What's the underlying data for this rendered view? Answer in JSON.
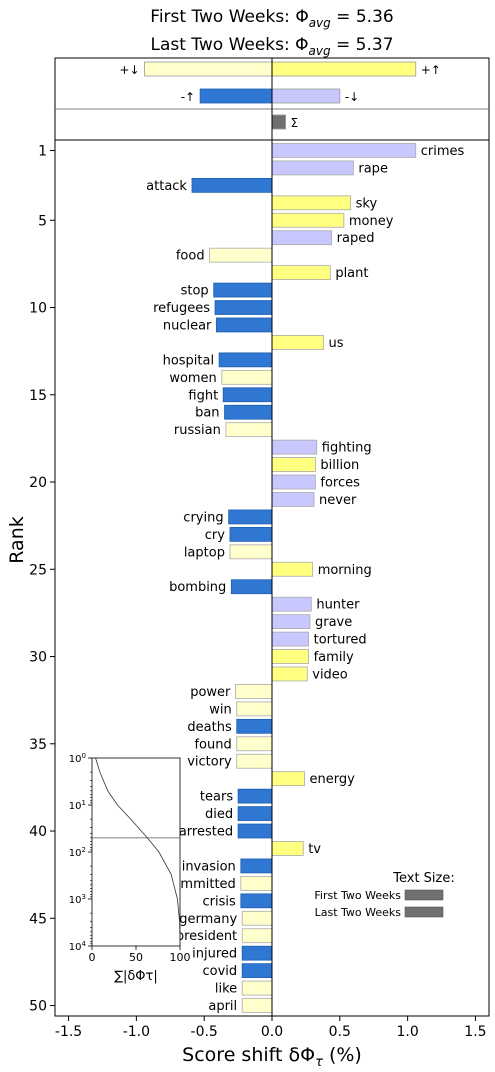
{
  "chart_data": {
    "type": "bar",
    "orientation": "horizontal",
    "title_line1_prefix": "First Two Weeks: ",
    "title_line1_value": "5.36",
    "title_line2_prefix": "Last Two Weeks: ",
    "title_line2_value": "5.37",
    "xlabel": "Score shift",
    "ylabel": "Rank",
    "xlim": [
      -1.6,
      1.6
    ],
    "ylim": [
      50.6,
      0.4
    ],
    "xticks": [
      -1.5,
      -1.0,
      -0.5,
      0.0,
      0.5,
      1.0,
      1.5
    ],
    "xtick_labels": [
      "-1.5",
      "-1.0",
      "-0.5",
      "0.0",
      "0.5",
      "1.0",
      "1.5"
    ],
    "yticks": [
      1,
      5,
      10,
      15,
      20,
      25,
      30,
      35,
      40,
      45,
      50
    ],
    "colors": {
      "pos_up": "#ffff80",
      "pos_down": "#c8c8ff",
      "neg_down": "#ffffcc",
      "neg_up": "#2f77d2",
      "sum": "#707070"
    },
    "summary": [
      {
        "label": "+↓",
        "value": -0.94,
        "kind": "neg_down"
      },
      {
        "label": "+↑",
        "value": 1.06,
        "kind": "pos_up"
      },
      {
        "label": "-↑",
        "value": -0.53,
        "kind": "neg_up"
      },
      {
        "label": "-↓",
        "value": 0.5,
        "kind": "pos_down"
      },
      {
        "label": "Σ",
        "value": 0.1,
        "kind": "sum"
      }
    ],
    "words": [
      {
        "rank": 1,
        "word": "crimes",
        "value": 1.06,
        "kind": "pos_down"
      },
      {
        "rank": 2,
        "word": "rape",
        "value": 0.6,
        "kind": "pos_down"
      },
      {
        "rank": 3,
        "word": "attack",
        "value": -0.59,
        "kind": "neg_up"
      },
      {
        "rank": 4,
        "word": "sky",
        "value": 0.58,
        "kind": "pos_up"
      },
      {
        "rank": 5,
        "word": "money",
        "value": 0.53,
        "kind": "pos_up"
      },
      {
        "rank": 6,
        "word": "raped",
        "value": 0.44,
        "kind": "pos_down"
      },
      {
        "rank": 7,
        "word": "food",
        "value": -0.46,
        "kind": "neg_down"
      },
      {
        "rank": 8,
        "word": "plant",
        "value": 0.43,
        "kind": "pos_up"
      },
      {
        "rank": 9,
        "word": "stop",
        "value": -0.43,
        "kind": "neg_up"
      },
      {
        "rank": 10,
        "word": "refugees",
        "value": -0.42,
        "kind": "neg_up"
      },
      {
        "rank": 11,
        "word": "nuclear",
        "value": -0.41,
        "kind": "neg_up"
      },
      {
        "rank": 12,
        "word": "us",
        "value": 0.38,
        "kind": "pos_up"
      },
      {
        "rank": 13,
        "word": "hospital",
        "value": -0.39,
        "kind": "neg_up"
      },
      {
        "rank": 14,
        "word": "women",
        "value": -0.37,
        "kind": "neg_down"
      },
      {
        "rank": 15,
        "word": "fight",
        "value": -0.36,
        "kind": "neg_up"
      },
      {
        "rank": 16,
        "word": "ban",
        "value": -0.35,
        "kind": "neg_up"
      },
      {
        "rank": 17,
        "word": "russian",
        "value": -0.34,
        "kind": "neg_down"
      },
      {
        "rank": 18,
        "word": "fighting",
        "value": 0.33,
        "kind": "pos_down"
      },
      {
        "rank": 19,
        "word": "billion",
        "value": 0.32,
        "kind": "pos_up"
      },
      {
        "rank": 20,
        "word": "forces",
        "value": 0.32,
        "kind": "pos_down"
      },
      {
        "rank": 21,
        "word": "never",
        "value": 0.31,
        "kind": "pos_down"
      },
      {
        "rank": 22,
        "word": "crying",
        "value": -0.32,
        "kind": "neg_up"
      },
      {
        "rank": 23,
        "word": "cry",
        "value": -0.31,
        "kind": "neg_up"
      },
      {
        "rank": 24,
        "word": "laptop",
        "value": -0.31,
        "kind": "neg_down"
      },
      {
        "rank": 25,
        "word": "morning",
        "value": 0.3,
        "kind": "pos_up"
      },
      {
        "rank": 26,
        "word": "bombing",
        "value": -0.3,
        "kind": "neg_up"
      },
      {
        "rank": 27,
        "word": "hunter",
        "value": 0.29,
        "kind": "pos_down"
      },
      {
        "rank": 28,
        "word": "grave",
        "value": 0.28,
        "kind": "pos_down"
      },
      {
        "rank": 29,
        "word": "tortured",
        "value": 0.27,
        "kind": "pos_down"
      },
      {
        "rank": 30,
        "word": "family",
        "value": 0.27,
        "kind": "pos_up"
      },
      {
        "rank": 31,
        "word": "video",
        "value": 0.26,
        "kind": "pos_up"
      },
      {
        "rank": 32,
        "word": "power",
        "value": -0.27,
        "kind": "neg_down"
      },
      {
        "rank": 33,
        "word": "win",
        "value": -0.26,
        "kind": "neg_down"
      },
      {
        "rank": 34,
        "word": "deaths",
        "value": -0.26,
        "kind": "neg_up"
      },
      {
        "rank": 35,
        "word": "found",
        "value": -0.26,
        "kind": "neg_down"
      },
      {
        "rank": 36,
        "word": "victory",
        "value": -0.26,
        "kind": "neg_down"
      },
      {
        "rank": 37,
        "word": "energy",
        "value": 0.24,
        "kind": "pos_up"
      },
      {
        "rank": 38,
        "word": "tears",
        "value": -0.25,
        "kind": "neg_up"
      },
      {
        "rank": 39,
        "word": "died",
        "value": -0.25,
        "kind": "neg_up"
      },
      {
        "rank": 40,
        "word": "arrested",
        "value": -0.25,
        "kind": "neg_up"
      },
      {
        "rank": 41,
        "word": "tv",
        "value": 0.23,
        "kind": "pos_up"
      },
      {
        "rank": 42,
        "word": "invasion",
        "value": -0.23,
        "kind": "neg_up"
      },
      {
        "rank": 43,
        "word": "committed",
        "value": -0.23,
        "kind": "neg_down"
      },
      {
        "rank": 44,
        "word": "crisis",
        "value": -0.23,
        "kind": "neg_up"
      },
      {
        "rank": 45,
        "word": "germany",
        "value": -0.22,
        "kind": "neg_down"
      },
      {
        "rank": 46,
        "word": "president",
        "value": -0.22,
        "kind": "neg_down"
      },
      {
        "rank": 47,
        "word": "injured",
        "value": -0.22,
        "kind": "neg_up"
      },
      {
        "rank": 48,
        "word": "covid",
        "value": -0.22,
        "kind": "neg_up"
      },
      {
        "rank": 49,
        "word": "like",
        "value": -0.22,
        "kind": "neg_down"
      },
      {
        "rank": 50,
        "word": "april",
        "value": -0.22,
        "kind": "neg_down"
      }
    ],
    "inset": {
      "xlabel": "∑|δΦτ|",
      "xticks": [
        0,
        50,
        100
      ],
      "ylog_exponents": [
        0,
        1,
        2,
        3,
        4
      ],
      "reference_line_rank": 50,
      "curve_percent_at_rank": [
        [
          1,
          4
        ],
        [
          2,
          9
        ],
        [
          5,
          18
        ],
        [
          10,
          29
        ],
        [
          20,
          44
        ],
        [
          50,
          63
        ],
        [
          100,
          76
        ],
        [
          300,
          90
        ],
        [
          1000,
          97
        ],
        [
          3000,
          99.5
        ],
        [
          10000,
          100
        ]
      ]
    },
    "text_size": {
      "title": "Text Size:",
      "entries": [
        {
          "label": "First Two Weeks",
          "relative_size": 1.0
        },
        {
          "label": "Last Two Weeks",
          "relative_size": 1.0
        }
      ]
    }
  }
}
